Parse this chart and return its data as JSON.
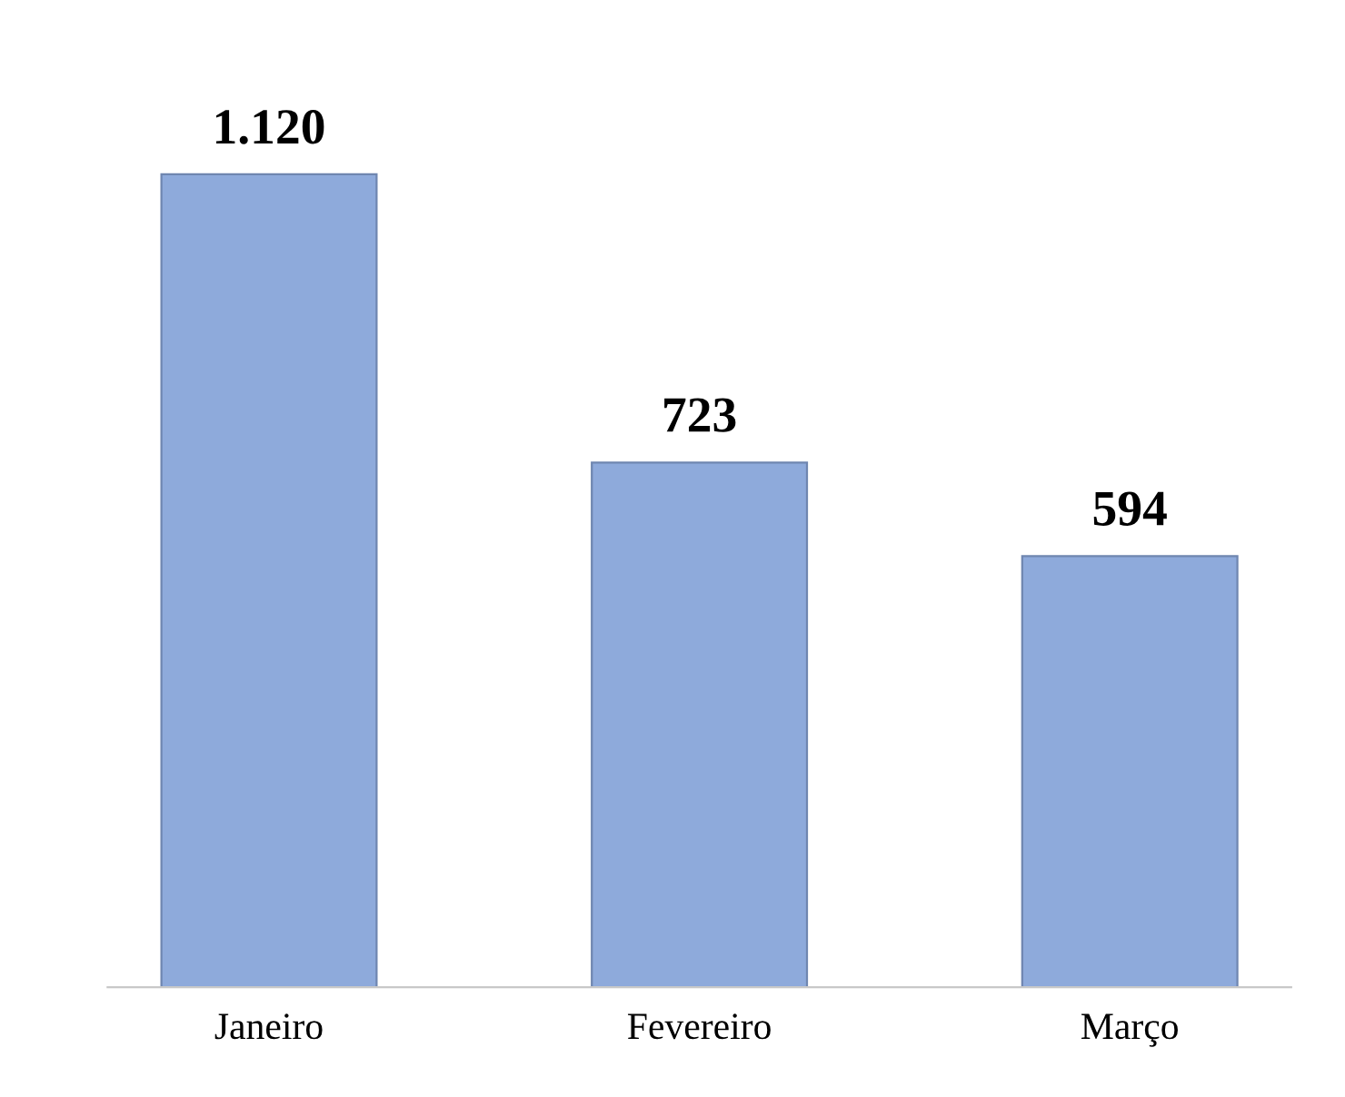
{
  "chart_data": {
    "type": "bar",
    "categories": [
      "Janeiro",
      "Fevereiro",
      "Março"
    ],
    "values": [
      1120,
      723,
      594
    ],
    "color": "#8eaadb",
    "value_labels": [
      "1.120",
      "723",
      "594"
    ]
  }
}
